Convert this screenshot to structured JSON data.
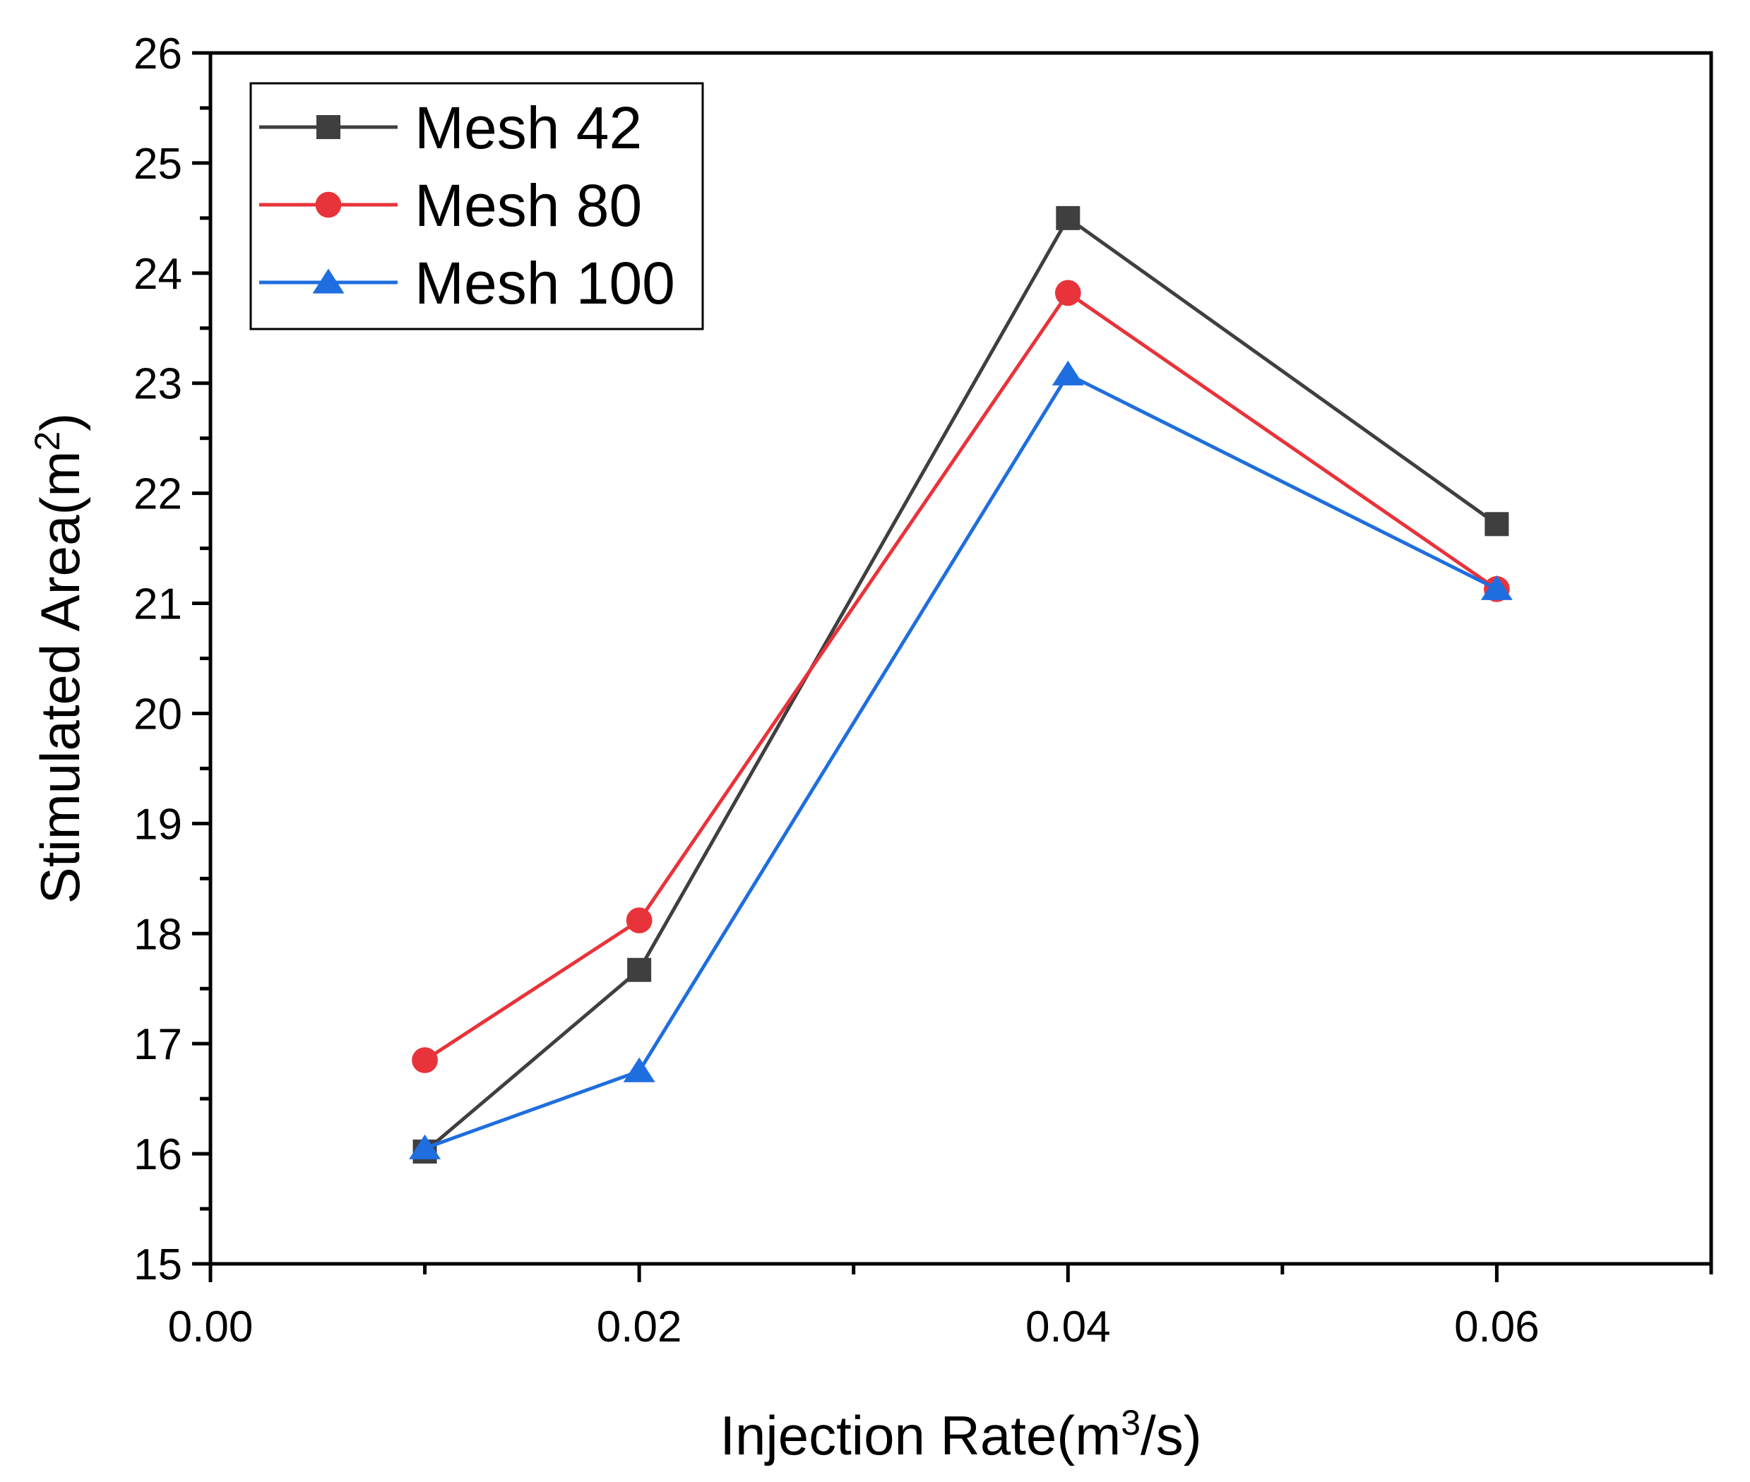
{
  "chart_data": {
    "type": "line",
    "xlabel": "Injection Rate(m",
    "xlabel_sup": "3",
    "xlabel_tail": "/s)",
    "ylabel": "Stimulated Area(m",
    "ylabel_sup": "2",
    "ylabel_tail": ")",
    "xlim": [
      0,
      0.07
    ],
    "ylim": [
      15,
      26
    ],
    "x_ticks": [
      "0.00",
      "0.02",
      "0.04",
      "0.06"
    ],
    "y_ticks": [
      "15",
      "16",
      "17",
      "18",
      "19",
      "20",
      "21",
      "22",
      "23",
      "24",
      "25",
      "26"
    ],
    "grid": false,
    "legend_position": "top-left",
    "x": [
      0.01,
      0.02,
      0.04,
      0.06
    ],
    "series": [
      {
        "name": "Mesh 42",
        "values": [
          16.02,
          17.67,
          24.5,
          21.72
        ],
        "color": "#3f3f3f",
        "marker": "square"
      },
      {
        "name": "Mesh 80",
        "values": [
          16.85,
          18.12,
          23.82,
          21.13
        ],
        "color": "#e8333a",
        "marker": "circle"
      },
      {
        "name": "Mesh 100",
        "values": [
          16.05,
          16.75,
          23.08,
          21.13
        ],
        "color": "#1f6ee0",
        "marker": "triangle"
      }
    ]
  }
}
